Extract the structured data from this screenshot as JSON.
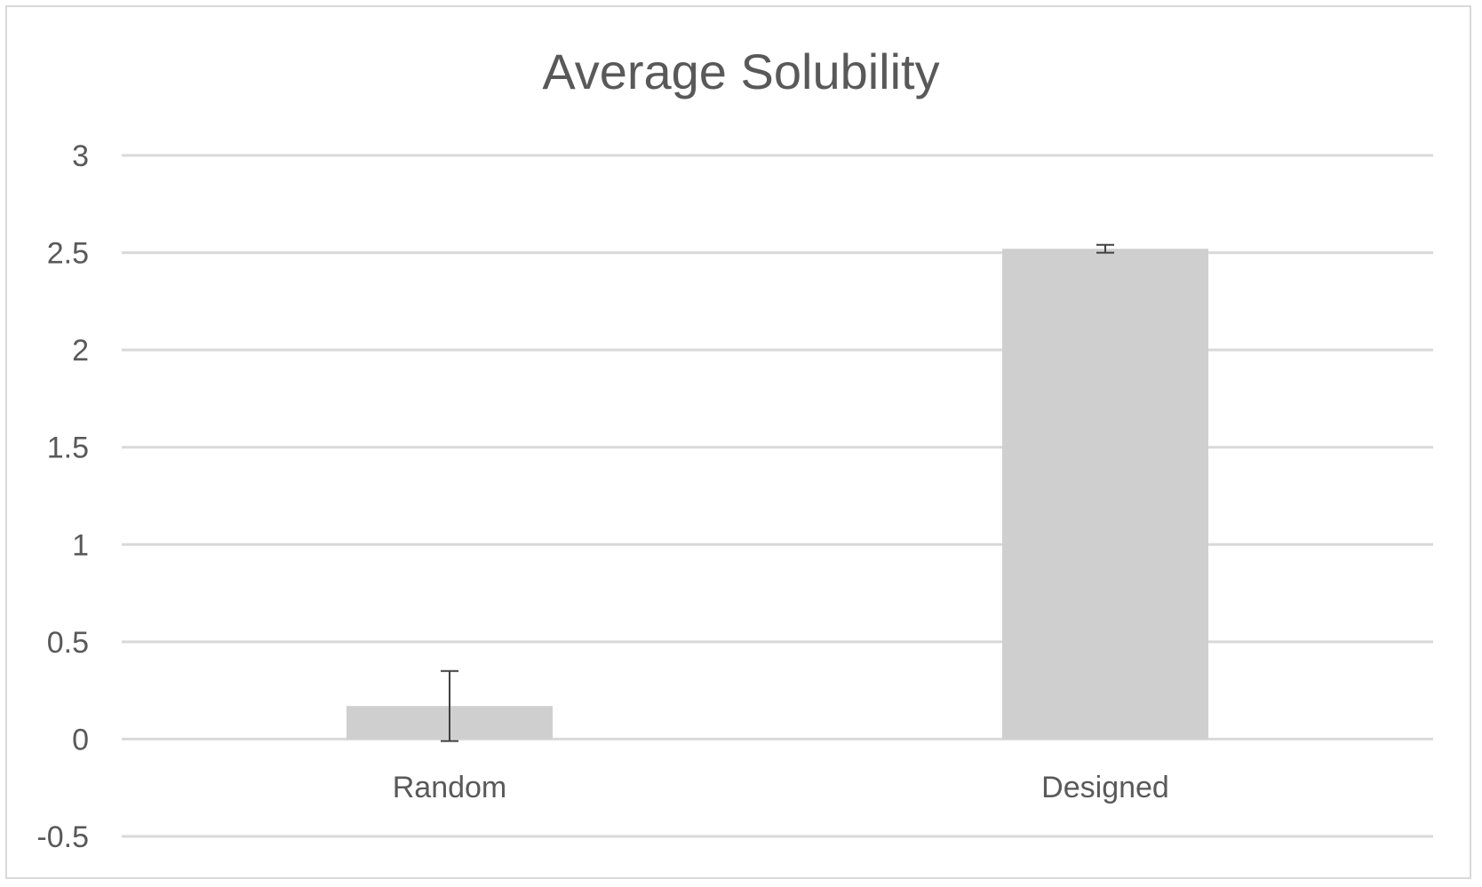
{
  "chart_data": {
    "type": "bar",
    "title": "Average Solubility",
    "xlabel": "",
    "ylabel": "",
    "categories": [
      "Random",
      "Designed"
    ],
    "values": [
      0.17,
      2.52
    ],
    "error_bars": [
      0.18,
      0.02
    ],
    "ylim": [
      -0.5,
      3
    ],
    "yticks": [
      3,
      2.5,
      2,
      1.5,
      1,
      0.5,
      0,
      -0.5
    ],
    "ytick_labels": [
      "3",
      "2.5",
      "2",
      "1.5",
      "1",
      "0.5",
      "0",
      "-0.5"
    ],
    "grid": true,
    "legend": "none",
    "colors": {
      "bar": "#d0cfd0",
      "grid": "#d9d9d9",
      "text": "#595959",
      "error_bar": "#404040"
    }
  }
}
